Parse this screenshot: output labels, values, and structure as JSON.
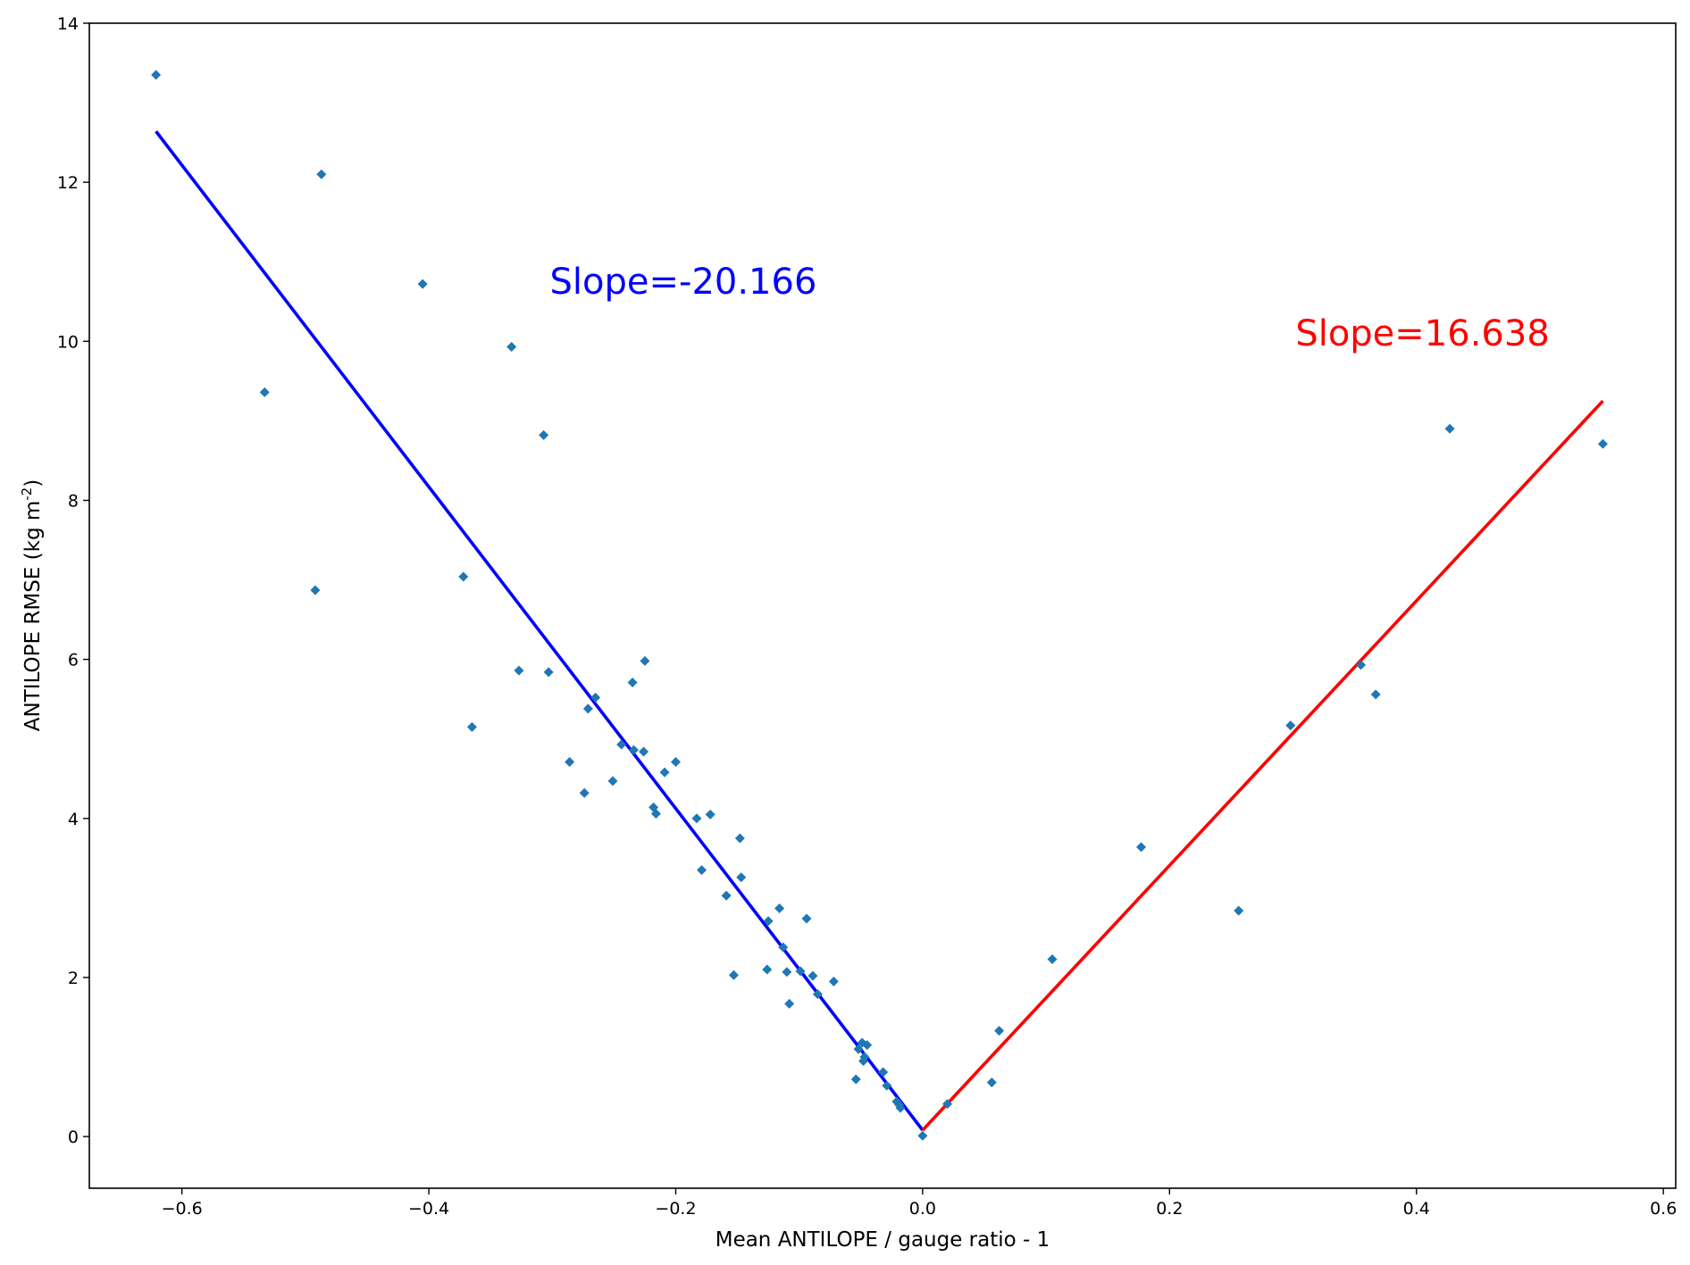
{
  "chart_data": {
    "type": "scatter",
    "title": "",
    "xlabel": "Mean ANTILOPE / gauge ratio - 1",
    "ylabel": "ANTILOPE RMSE (kg m",
    "ylabel_superscript": "-2",
    "ylabel_suffix": ")",
    "xlim": [
      -0.675,
      0.61
    ],
    "ylim": [
      -0.65,
      14.0
    ],
    "x_ticks": [
      -0.6,
      -0.4,
      -0.2,
      0.0,
      0.2,
      0.4,
      0.6
    ],
    "x_tick_labels": [
      "−0.6",
      "−0.4",
      "−0.2",
      "0.0",
      "0.2",
      "0.4",
      "0.6"
    ],
    "y_ticks": [
      0,
      2,
      4,
      6,
      8,
      10,
      12,
      14
    ],
    "y_tick_labels": [
      "0",
      "2",
      "4",
      "6",
      "8",
      "10",
      "12",
      "14"
    ],
    "grid": false,
    "colors": {
      "points": "#1f77b4",
      "neg_fit": "#0000ff",
      "pos_fit": "#ff0000"
    },
    "points": [
      [
        -0.621,
        13.35
      ],
      [
        -0.487,
        12.1
      ],
      [
        -0.405,
        10.72
      ],
      [
        -0.333,
        9.93
      ],
      [
        -0.533,
        9.36
      ],
      [
        -0.307,
        8.82
      ],
      [
        -0.372,
        7.04
      ],
      [
        -0.492,
        6.87
      ],
      [
        -0.225,
        5.98
      ],
      [
        -0.327,
        5.86
      ],
      [
        -0.303,
        5.84
      ],
      [
        -0.235,
        5.71
      ],
      [
        -0.265,
        5.52
      ],
      [
        -0.271,
        5.38
      ],
      [
        -0.365,
        5.15
      ],
      [
        -0.244,
        4.93
      ],
      [
        -0.226,
        4.84
      ],
      [
        -0.234,
        4.86
      ],
      [
        -0.286,
        4.71
      ],
      [
        -0.2,
        4.71
      ],
      [
        -0.209,
        4.58
      ],
      [
        -0.251,
        4.47
      ],
      [
        -0.274,
        4.32
      ],
      [
        -0.218,
        4.14
      ],
      [
        -0.216,
        4.06
      ],
      [
        -0.172,
        4.05
      ],
      [
        -0.183,
        4.0
      ],
      [
        -0.148,
        3.75
      ],
      [
        -0.179,
        3.35
      ],
      [
        -0.147,
        3.26
      ],
      [
        -0.159,
        3.03
      ],
      [
        -0.116,
        2.87
      ],
      [
        -0.094,
        2.74
      ],
      [
        -0.125,
        2.71
      ],
      [
        -0.113,
        2.38
      ],
      [
        -0.126,
        2.1
      ],
      [
        -0.11,
        2.07
      ],
      [
        -0.099,
        2.08
      ],
      [
        -0.153,
        2.03
      ],
      [
        -0.089,
        2.02
      ],
      [
        -0.072,
        1.95
      ],
      [
        -0.085,
        1.79
      ],
      [
        -0.108,
        1.67
      ],
      [
        -0.049,
        1.18
      ],
      [
        -0.045,
        1.15
      ],
      [
        -0.052,
        1.1
      ],
      [
        -0.047,
        1.0
      ],
      [
        -0.048,
        0.95
      ],
      [
        -0.032,
        0.81
      ],
      [
        -0.054,
        0.72
      ],
      [
        -0.029,
        0.64
      ],
      [
        -0.021,
        0.44
      ],
      [
        -0.018,
        0.36
      ],
      [
        -0.019,
        0.4
      ],
      [
        0.0,
        0.01
      ],
      [
        0.02,
        0.41
      ],
      [
        0.056,
        0.68
      ],
      [
        0.062,
        1.33
      ],
      [
        0.105,
        2.23
      ],
      [
        0.177,
        3.64
      ],
      [
        0.256,
        2.84
      ],
      [
        0.298,
        5.17
      ],
      [
        0.355,
        5.93
      ],
      [
        0.367,
        5.56
      ],
      [
        0.427,
        8.9
      ],
      [
        0.551,
        8.71
      ]
    ],
    "fit_lines": [
      {
        "slope": -20.166,
        "x": [
          -0.621,
          0.0
        ],
        "y": [
          12.64,
          0.08
        ]
      },
      {
        "slope": 16.638,
        "x": [
          0.0,
          0.551
        ],
        "y": [
          0.08,
          9.25
        ]
      }
    ],
    "annotations": [
      {
        "text": "Slope=-20.166",
        "x": -0.302,
        "y": 10.6,
        "color": "#0000ff"
      },
      {
        "text": "Slope=16.638",
        "x": 0.302,
        "y": 9.95,
        "color": "#ff0000"
      }
    ]
  }
}
